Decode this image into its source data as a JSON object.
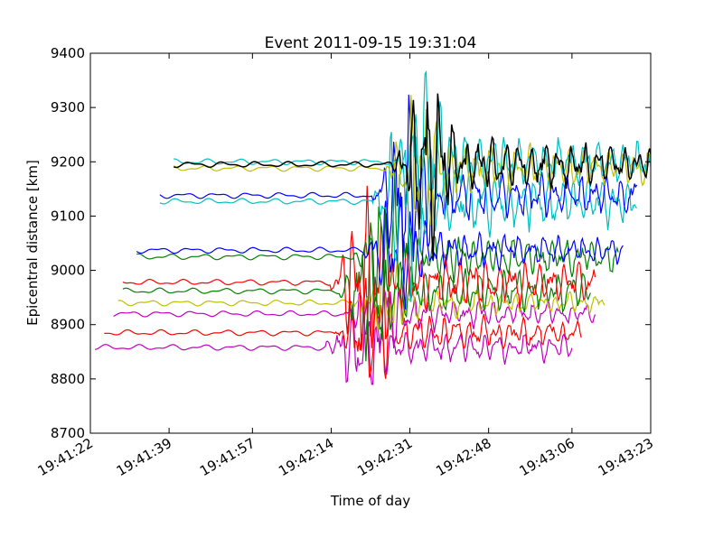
{
  "chart_data": {
    "type": "line",
    "title": "Event 2011-09-15 19:31:04",
    "xlabel": "Time of day",
    "ylabel": "Epicentral distance [km]",
    "ylim": [
      8700,
      9400
    ],
    "yticks": [
      8700,
      8800,
      8900,
      9000,
      9100,
      9200,
      9300,
      9400
    ],
    "xlim": [
      "19:41:22",
      "19:43:23"
    ],
    "xticks": [
      "19:41:22",
      "19:41:39",
      "19:41:57",
      "19:42:14",
      "19:42:31",
      "19:42:48",
      "19:43:06",
      "19:43:23"
    ],
    "grid": false,
    "legend": "none",
    "series": [
      {
        "color": "#bf00bf",
        "baseline": 8858,
        "start": "19:41:23",
        "end": "19:43:06",
        "arrival": "19:42:14",
        "peak": 80
      },
      {
        "color": "#ff0000",
        "baseline": 8885,
        "start": "19:41:25",
        "end": "19:43:08",
        "arrival": "19:42:16",
        "peak": 85
      },
      {
        "color": "#bf00bf",
        "baseline": 8920,
        "start": "19:41:27",
        "end": "19:43:11",
        "arrival": "19:42:18",
        "peak": 70
      },
      {
        "color": "#bfbf00",
        "baseline": 8940,
        "start": "19:41:28",
        "end": "19:43:13",
        "arrival": "19:42:20",
        "peak": 60
      },
      {
        "color": "#008000",
        "baseline": 8962,
        "start": "19:41:29",
        "end": "19:43:10",
        "arrival": "19:42:17",
        "peak": 120
      },
      {
        "color": "#ff0000",
        "baseline": 8978,
        "start": "19:41:29",
        "end": "19:43:11",
        "arrival": "19:42:15",
        "peak": 130
      },
      {
        "color": "#008000",
        "baseline": 9025,
        "start": "19:41:32",
        "end": "19:43:16",
        "arrival": "19:42:20",
        "peak": 110
      },
      {
        "color": "#0000ff",
        "baseline": 9037,
        "start": "19:41:32",
        "end": "19:43:17",
        "arrival": "19:42:22",
        "peak": 90
      },
      {
        "color": "#00bfbf",
        "baseline": 9127,
        "start": "19:41:37",
        "end": "19:43:20",
        "arrival": "19:42:24",
        "peak": 160
      },
      {
        "color": "#0000ff",
        "baseline": 9138,
        "start": "19:41:37",
        "end": "19:43:20",
        "arrival": "19:42:24",
        "peak": 130
      },
      {
        "color": "#bfbf00",
        "baseline": 9188,
        "start": "19:41:40",
        "end": "19:43:23",
        "arrival": "19:42:27",
        "peak": 120
      },
      {
        "color": "#00bfbf",
        "baseline": 9200,
        "start": "19:41:40",
        "end": "19:43:23",
        "arrival": "19:42:28",
        "peak": 135
      },
      {
        "color": "#000000",
        "baseline": 9195,
        "start": "19:41:40",
        "end": "19:43:23",
        "arrival": "19:42:28",
        "peak": 130
      }
    ]
  }
}
